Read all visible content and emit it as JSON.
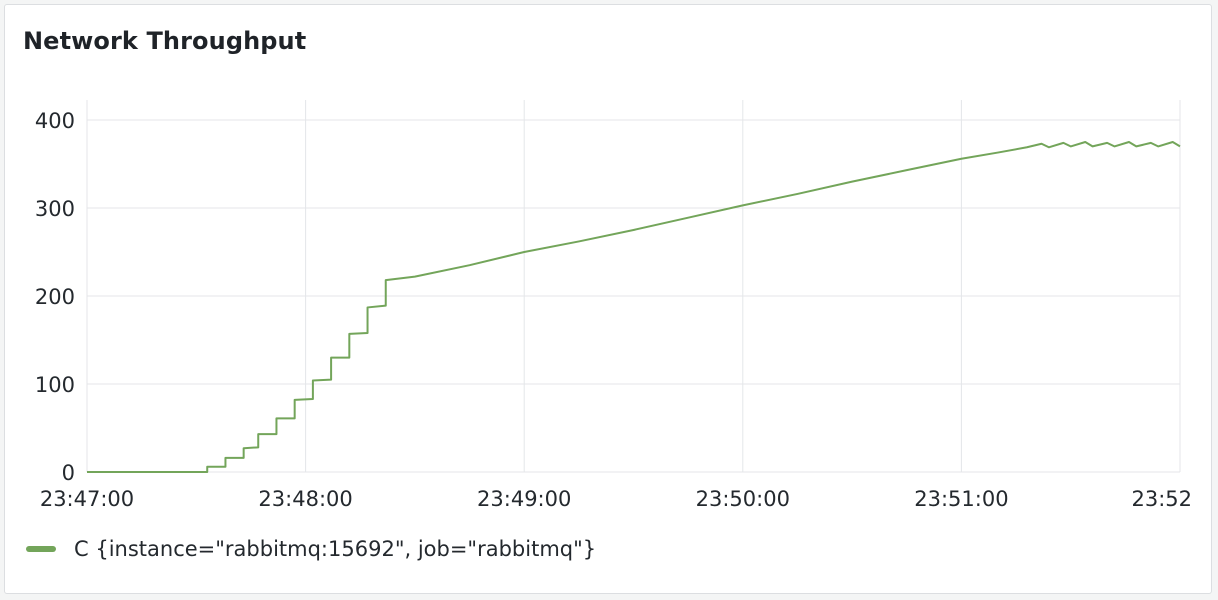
{
  "panel": {
    "title": "Network Throughput"
  },
  "chart_data": {
    "type": "line",
    "title": "Network Throughput",
    "xlabel": "",
    "ylabel": "",
    "x_tick_labels": [
      "23:47:00",
      "23:48:00",
      "23:49:00",
      "23:50:00",
      "23:51:00",
      "23:52"
    ],
    "x_range": [
      "23:47:00",
      "23:52:00"
    ],
    "y_ticks": [
      0,
      100,
      200,
      300,
      400
    ],
    "ylim": [
      0,
      400
    ],
    "grid": true,
    "legend_position": "bottom-left",
    "series": [
      {
        "name": "C {instance=\"rabbitmq:15692\", job=\"rabbitmq\"}",
        "color": "#73a55a",
        "points": [
          [
            "23:47:00",
            0
          ],
          [
            "23:47:33",
            0
          ],
          [
            "23:47:33",
            6
          ],
          [
            "23:47:38",
            6
          ],
          [
            "23:47:38",
            16
          ],
          [
            "23:47:43",
            16
          ],
          [
            "23:47:43",
            27
          ],
          [
            "23:47:47",
            28
          ],
          [
            "23:47:47",
            43
          ],
          [
            "23:47:52",
            43
          ],
          [
            "23:47:52",
            61
          ],
          [
            "23:47:57",
            61
          ],
          [
            "23:47:57",
            82
          ],
          [
            "23:48:02",
            83
          ],
          [
            "23:48:02",
            104
          ],
          [
            "23:48:07",
            105
          ],
          [
            "23:48:07",
            130
          ],
          [
            "23:48:12",
            130
          ],
          [
            "23:48:12",
            157
          ],
          [
            "23:48:17",
            158
          ],
          [
            "23:48:17",
            187
          ],
          [
            "23:48:22",
            189
          ],
          [
            "23:48:22",
            218
          ],
          [
            "23:48:30",
            222
          ],
          [
            "23:48:45",
            235
          ],
          [
            "23:49:00",
            250
          ],
          [
            "23:49:15",
            262
          ],
          [
            "23:49:30",
            275
          ],
          [
            "23:49:45",
            289
          ],
          [
            "23:50:00",
            303
          ],
          [
            "23:50:15",
            316
          ],
          [
            "23:50:30",
            330
          ],
          [
            "23:50:45",
            343
          ],
          [
            "23:51:00",
            356
          ],
          [
            "23:51:10",
            363
          ],
          [
            "23:51:18",
            369
          ],
          [
            "23:51:22",
            373
          ],
          [
            "23:51:24",
            369
          ],
          [
            "23:51:28",
            374
          ],
          [
            "23:51:30",
            370
          ],
          [
            "23:51:34",
            375
          ],
          [
            "23:51:36",
            370
          ],
          [
            "23:51:40",
            374
          ],
          [
            "23:51:42",
            370
          ],
          [
            "23:51:46",
            375
          ],
          [
            "23:51:48",
            370
          ],
          [
            "23:51:52",
            374
          ],
          [
            "23:51:54",
            370
          ],
          [
            "23:51:58",
            375
          ],
          [
            "23:52:00",
            370
          ]
        ]
      }
    ]
  }
}
